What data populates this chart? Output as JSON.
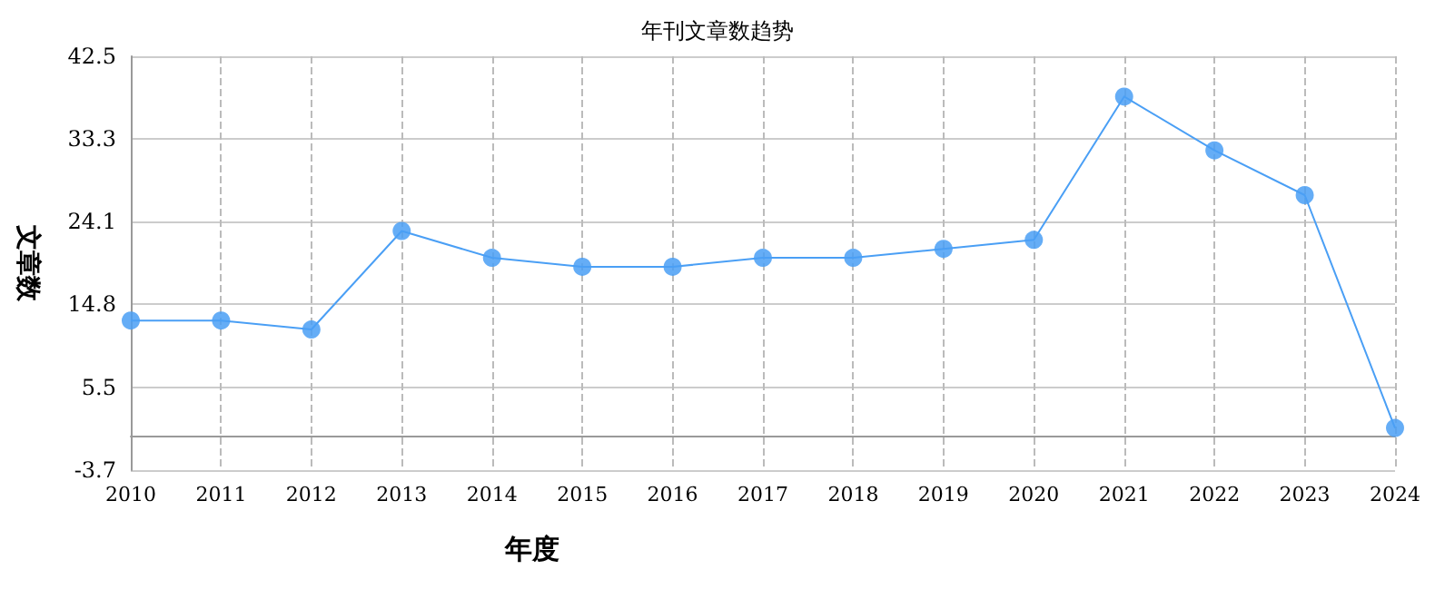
{
  "chart_data": {
    "type": "line",
    "title": "年刊文章数趋势",
    "xlabel": "年度",
    "ylabel": "文章数",
    "categories": [
      "2010",
      "2011",
      "2012",
      "2013",
      "2014",
      "2015",
      "2016",
      "2017",
      "2018",
      "2019",
      "2020",
      "2021",
      "2022",
      "2023",
      "2024"
    ],
    "series": [
      {
        "color": "#4a9ff5",
        "values": [
          13,
          13,
          12,
          23,
          20,
          19,
          19,
          20,
          20,
          21,
          22,
          38,
          32,
          27,
          1
        ]
      }
    ],
    "ylim": [
      -3.7,
      42.5
    ],
    "yticks": [
      -3.7,
      5.5,
      14.8,
      24.1,
      33.3,
      42.5
    ],
    "grid": true,
    "marker": "circle",
    "line_style": "solid"
  }
}
